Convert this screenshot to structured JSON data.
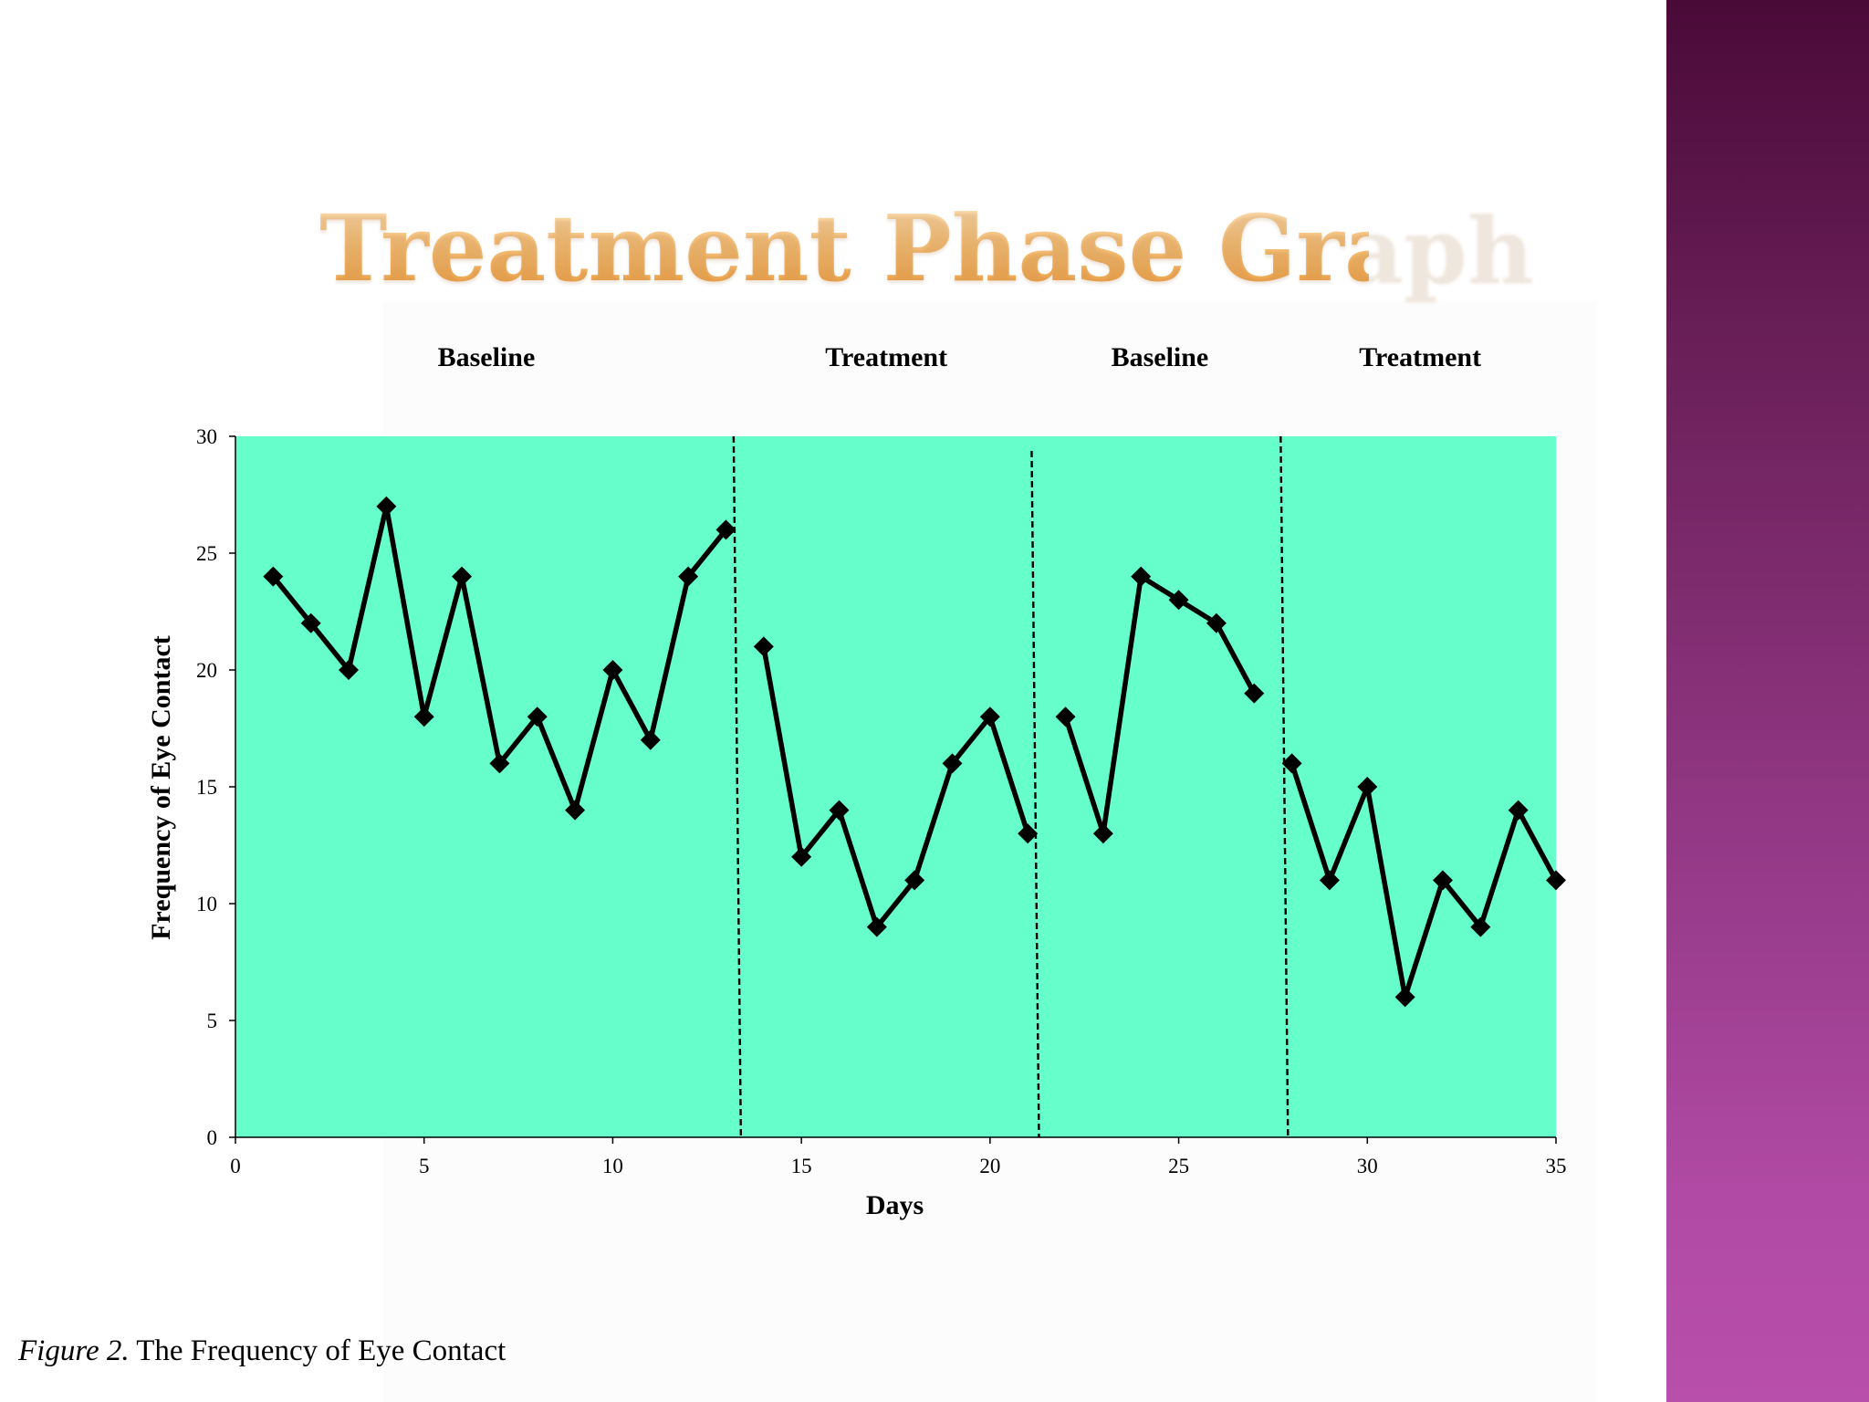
{
  "slide": {
    "title": "Treatment Phase Graph",
    "caption_label": "Figure 2.",
    "caption_text": "The Frequency of Eye Contact"
  },
  "colors": {
    "plot_background": "#66ffcc",
    "series_line": "#000000",
    "title_gradient_top": "#fde6c4",
    "title_gradient_bottom": "#ee9c3e",
    "sidebar_top": "#4a0a38",
    "sidebar_bottom": "#b84fab"
  },
  "chart_data": {
    "type": "line",
    "xlabel": "Days",
    "ylabel": "Frequency of Eye Contact",
    "xlim": [
      0,
      35
    ],
    "ylim": [
      0,
      30
    ],
    "xticks": [
      0,
      5,
      10,
      15,
      20,
      25,
      30,
      35
    ],
    "yticks": [
      0,
      5,
      10,
      15,
      20,
      25,
      30
    ],
    "grid": false,
    "marker": "diamond",
    "phase_changes": [
      13.3,
      21.2,
      27.8
    ],
    "phases": [
      {
        "label": "Baseline",
        "x_start": 0,
        "x_end": 13.3
      },
      {
        "label": "Treatment",
        "x_start": 13.3,
        "x_end": 21.2
      },
      {
        "label": "Baseline",
        "x_start": 21.2,
        "x_end": 27.8
      },
      {
        "label": "Treatment",
        "x_start": 27.8,
        "x_end": 35
      }
    ],
    "segments": [
      {
        "x": [
          1,
          2,
          3,
          4,
          5,
          6,
          7,
          8,
          9,
          10,
          11,
          12,
          13
        ],
        "y": [
          24,
          22,
          20,
          27,
          18,
          24,
          16,
          18,
          14,
          20,
          17,
          24,
          26
        ]
      },
      {
        "x": [
          14,
          15,
          16,
          17,
          18,
          19,
          20,
          21
        ],
        "y": [
          21,
          12,
          14,
          9,
          11,
          16,
          18,
          13
        ]
      },
      {
        "x": [
          22,
          23,
          24,
          25,
          26,
          27
        ],
        "y": [
          18,
          13,
          24,
          23,
          22,
          19
        ]
      },
      {
        "x": [
          28,
          29,
          30,
          31,
          32,
          33,
          34,
          35
        ],
        "y": [
          16,
          11,
          15,
          6,
          11,
          9,
          14,
          11
        ]
      }
    ]
  }
}
